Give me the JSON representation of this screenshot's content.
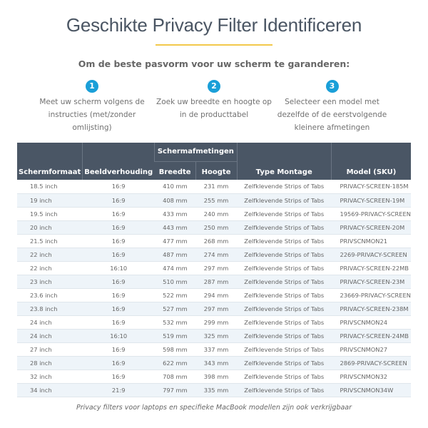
{
  "colors": {
    "accent": "#f2c84b",
    "blue": "#1a9fd8",
    "header": "#4a5665"
  },
  "title": "Geschikte Privacy Filter Identificeren",
  "subtitle": "Om de beste pasvorm voor uw scherm te garanderen:",
  "steps": [
    {
      "num": "1",
      "text": "Meet uw scherm volgens de instructies (met/zonder omlijsting)"
    },
    {
      "num": "2",
      "text": "Zoek uw breedte en hoogte op in de producttabel"
    },
    {
      "num": "3",
      "text": "Selecteer een model met dezelfde of de eerstvolgende kleinere afmetingen"
    }
  ],
  "table": {
    "headers": {
      "size": "Schermformaat",
      "ratio": "Beeldverhouding",
      "dims": "Schermafmetingen",
      "width": "Breedte",
      "height": "Hoogte",
      "mount": "Type Montage",
      "model": "Model (SKU)"
    },
    "rows": [
      [
        "18.5 inch",
        "16:9",
        "410 mm",
        "231 mm",
        "Zelfklevende Strips of Tabs",
        "PRIVACY-SCREEN-185M"
      ],
      [
        "19 inch",
        "16:9",
        "408 mm",
        "255 mm",
        "Zelfklevende Strips of Tabs",
        "PRIVACY-SCREEN-19M"
      ],
      [
        "19.5 inch",
        "16:9",
        "433 mm",
        "240 mm",
        "Zelfklevende Strips of Tabs",
        "19569-PRIVACY-SCREEN"
      ],
      [
        "20 inch",
        "16:9",
        "443 mm",
        "250 mm",
        "Zelfklevende Strips of Tabs",
        "PRIVACY-SCREEN-20M"
      ],
      [
        "21.5 inch",
        "16:9",
        "477 mm",
        "268 mm",
        "Zelfklevende Strips of Tabs",
        "PRIVSCNMON21"
      ],
      [
        "22 inch",
        "16:9",
        "487 mm",
        "274 mm",
        "Zelfklevende Strips of Tabs",
        "2269-PRIVACY-SCREEN"
      ],
      [
        "22 inch",
        "16:10",
        "474 mm",
        "297 mm",
        "Zelfklevende Strips of Tabs",
        "PRIVACY-SCREEN-22MB"
      ],
      [
        "23 inch",
        "16:9",
        "510 mm",
        "287 mm",
        "Zelfklevende Strips of Tabs",
        "PRIVACY-SCREEN-23M"
      ],
      [
        "23.6 inch",
        "16:9",
        "522 mm",
        "294 mm",
        "Zelfklevende Strips of Tabs",
        "23669-PRIVACY-SCREEN"
      ],
      [
        "23.8 inch",
        "16:9",
        "527 mm",
        "297 mm",
        "Zelfklevende Strips of Tabs",
        "PRIVACY-SCREEN-238M"
      ],
      [
        "24 inch",
        "16:9",
        "532 mm",
        "299 mm",
        "Zelfklevende Strips of Tabs",
        "PRIVSCNMON24"
      ],
      [
        "24 inch",
        "16:10",
        "519 mm",
        "325 mm",
        "Zelfklevende Strips of Tabs",
        "PRIVACY-SCREEN-24MB"
      ],
      [
        "27 inch",
        "16:9",
        "598 mm",
        "337 mm",
        "Zelfklevende Strips of Tabs",
        "PRIVSCNMON27"
      ],
      [
        "28 inch",
        "16:9",
        "622 mm",
        "343 mm",
        "Zelfklevende Strips of Tabs",
        "2869-PRIVACY-SCREEN"
      ],
      [
        "32 inch",
        "16:9",
        "708 mm",
        "398 mm",
        "Zelfklevende Strips of Tabs",
        "PRIVSCNMON32"
      ],
      [
        "34 inch",
        "21:9",
        "797 mm",
        "335 mm",
        "Zelfklevende Strips of Tabs",
        "PRIVSCNMON34W"
      ]
    ]
  },
  "footer": "Privacy filters voor laptops en specifieke MacBook modellen zijn ook verkrijgbaar"
}
